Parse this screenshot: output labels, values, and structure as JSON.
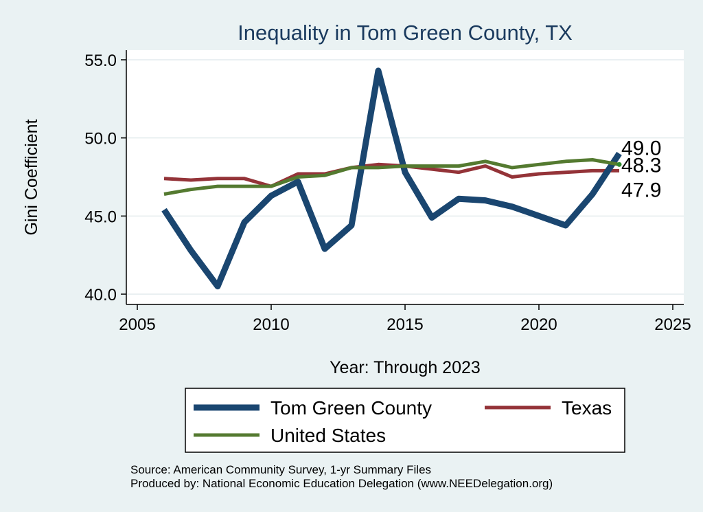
{
  "chart_data": {
    "type": "line",
    "title": "Inequality in Tom Green County, TX",
    "xlabel": "Year: Through 2023",
    "ylabel": "Gini Coefficient",
    "xlim": [
      2005,
      2025
    ],
    "ylim": [
      40,
      55
    ],
    "x_ticks": [
      2005,
      2010,
      2015,
      2020,
      2025
    ],
    "y_ticks": [
      40,
      45,
      50,
      55
    ],
    "y_tick_labels": [
      "40.0",
      "45.0",
      "50.0",
      "55.0"
    ],
    "x": [
      2006,
      2007,
      2008,
      2009,
      2010,
      2011,
      2012,
      2013,
      2014,
      2015,
      2016,
      2017,
      2018,
      2019,
      2020,
      2021,
      2022,
      2023
    ],
    "series": [
      {
        "name": "Tom Green County",
        "color": "#1a4670",
        "values": [
          45.4,
          42.8,
          40.5,
          44.6,
          46.3,
          47.2,
          42.9,
          44.4,
          54.3,
          47.8,
          44.9,
          46.1,
          46.0,
          45.6,
          45.0,
          44.4,
          46.4,
          49.0
        ],
        "end_label": "49.0"
      },
      {
        "name": "Texas",
        "color": "#943338",
        "values": [
          47.4,
          47.3,
          47.4,
          47.4,
          46.9,
          47.7,
          47.7,
          48.1,
          48.3,
          48.2,
          48.0,
          47.8,
          48.2,
          47.5,
          47.7,
          47.8,
          47.9,
          47.9
        ],
        "end_label": "47.9"
      },
      {
        "name": "United States",
        "color": "#547a30",
        "values": [
          46.4,
          46.7,
          46.9,
          46.9,
          46.9,
          47.5,
          47.6,
          48.1,
          48.1,
          48.2,
          48.2,
          48.2,
          48.5,
          48.1,
          48.3,
          48.5,
          48.6,
          48.3
        ],
        "end_label": "48.3"
      }
    ],
    "legend": [
      "Tom Green County",
      "Texas",
      "United States"
    ],
    "legend_position": "bottom",
    "grid": true,
    "source_lines": [
      "Source: American Community Survey, 1-yr Summary Files",
      "Produced by: National Economic Education Delegation (www.NEEDelegation.org)"
    ]
  }
}
